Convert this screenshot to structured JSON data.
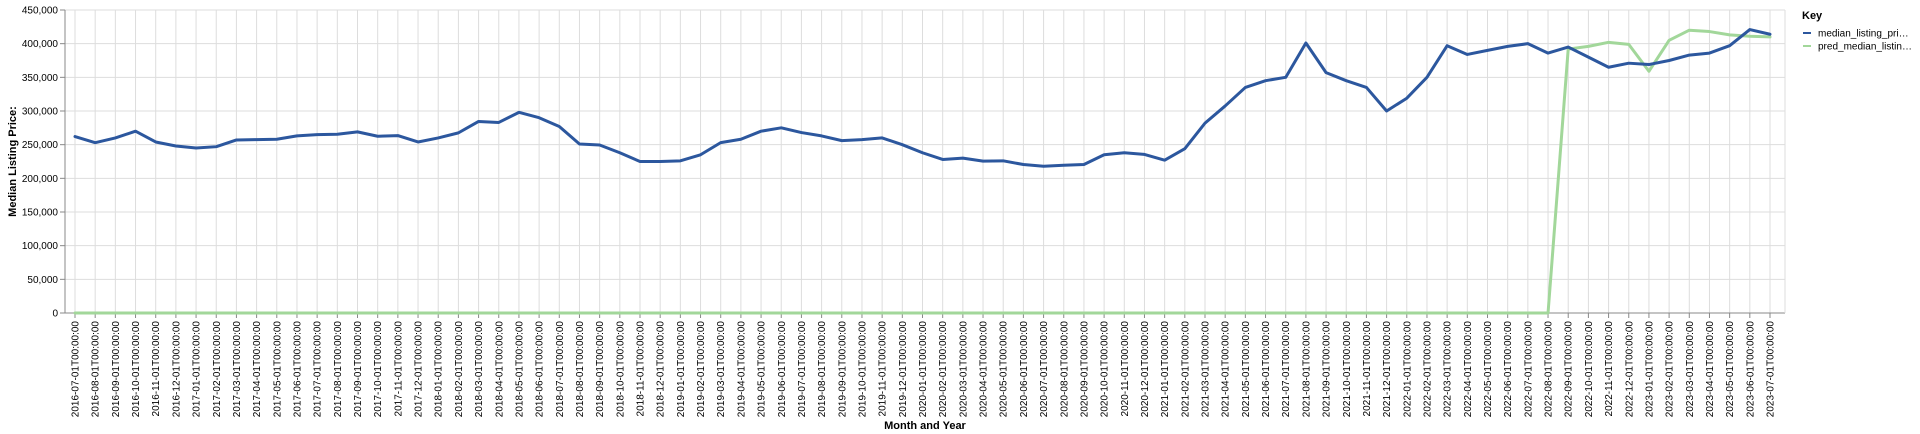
{
  "chart_data": {
    "type": "line",
    "xlabel": "Month and Year",
    "ylabel": "Median Listing Price:",
    "ylim": [
      0,
      450000
    ],
    "yticks": [
      "0",
      "50,000",
      "100,000",
      "150,000",
      "200,000",
      "250,000",
      "300,000",
      "350,000",
      "400,000",
      "450,000"
    ],
    "ytick_values": [
      0,
      50000,
      100000,
      150000,
      200000,
      250000,
      300000,
      350000,
      400000,
      450000
    ],
    "grid": true,
    "legend_title": "Key",
    "legend_position": "right",
    "x": [
      "2016-07-01T00:00:00",
      "2016-08-01T00:00:00",
      "2016-09-01T00:00:00",
      "2016-10-01T00:00:00",
      "2016-11-01T00:00:00",
      "2016-12-01T00:00:00",
      "2017-01-01T00:00:00",
      "2017-02-01T00:00:00",
      "2017-03-01T00:00:00",
      "2017-04-01T00:00:00",
      "2017-05-01T00:00:00",
      "2017-06-01T00:00:00",
      "2017-07-01T00:00:00",
      "2017-08-01T00:00:00",
      "2017-09-01T00:00:00",
      "2017-10-01T00:00:00",
      "2017-11-01T00:00:00",
      "2017-12-01T00:00:00",
      "2018-01-01T00:00:00",
      "2018-02-01T00:00:00",
      "2018-03-01T00:00:00",
      "2018-04-01T00:00:00",
      "2018-05-01T00:00:00",
      "2018-06-01T00:00:00",
      "2018-07-01T00:00:00",
      "2018-08-01T00:00:00",
      "2018-09-01T00:00:00",
      "2018-10-01T00:00:00",
      "2018-11-01T00:00:00",
      "2018-12-01T00:00:00",
      "2019-01-01T00:00:00",
      "2019-02-01T00:00:00",
      "2019-03-01T00:00:00",
      "2019-04-01T00:00:00",
      "2019-05-01T00:00:00",
      "2019-06-01T00:00:00",
      "2019-07-01T00:00:00",
      "2019-08-01T00:00:00",
      "2019-09-01T00:00:00",
      "2019-10-01T00:00:00",
      "2019-11-01T00:00:00",
      "2019-12-01T00:00:00",
      "2020-01-01T00:00:00",
      "2020-02-01T00:00:00",
      "2020-03-01T00:00:00",
      "2020-04-01T00:00:00",
      "2020-05-01T00:00:00",
      "2020-06-01T00:00:00",
      "2020-07-01T00:00:00",
      "2020-08-01T00:00:00",
      "2020-09-01T00:00:00",
      "2020-10-01T00:00:00",
      "2020-11-01T00:00:00",
      "2020-12-01T00:00:00",
      "2021-01-01T00:00:00",
      "2021-02-01T00:00:00",
      "2021-03-01T00:00:00",
      "2021-04-01T00:00:00",
      "2021-05-01T00:00:00",
      "2021-06-01T00:00:00",
      "2021-07-01T00:00:00",
      "2021-08-01T00:00:00",
      "2021-09-01T00:00:00",
      "2021-10-01T00:00:00",
      "2021-11-01T00:00:00",
      "2021-12-01T00:00:00",
      "2022-01-01T00:00:00",
      "2022-02-01T00:00:00",
      "2022-03-01T00:00:00",
      "2022-04-01T00:00:00",
      "2022-05-01T00:00:00",
      "2022-06-01T00:00:00",
      "2022-07-01T00:00:00",
      "2022-08-01T00:00:00",
      "2022-09-01T00:00:00",
      "2022-10-01T00:00:00",
      "2022-11-01T00:00:00",
      "2022-12-01T00:00:00",
      "2023-01-01T00:00:00",
      "2023-02-01T00:00:00",
      "2023-03-01T00:00:00",
      "2023-04-01T00:00:00",
      "2023-05-01T00:00:00",
      "2023-06-01T00:00:00",
      "2023-07-01T00:00:00"
    ],
    "series": [
      {
        "name": "median_listing_pri…",
        "color": "#2c579e",
        "values": [
          262000,
          253000,
          260000,
          270000,
          254000,
          248000,
          245000,
          247000,
          257000,
          257500,
          258000,
          263000,
          265000,
          265500,
          269000,
          262500,
          263500,
          254000,
          260000,
          267500,
          284500,
          283000,
          298000,
          290000,
          277000,
          251000,
          249500,
          238000,
          225000,
          225000,
          226000,
          235000,
          253000,
          258000,
          270000,
          275000,
          268000,
          263000,
          256000,
          257500,
          260000,
          250000,
          238000,
          228000,
          230000,
          225500,
          226000,
          220500,
          218000,
          219500,
          220500,
          235000,
          238000,
          235500,
          227000,
          244000,
          282000,
          307500,
          335000,
          345000,
          350000,
          401000,
          357000,
          345000,
          335000,
          300000,
          319000,
          350000,
          397000,
          384000,
          390000,
          396000,
          400000,
          386000,
          395000,
          380000,
          365000,
          371000,
          369000,
          375000,
          383000,
          386000,
          397000,
          421000,
          414000
        ]
      },
      {
        "name": "pred_median_listin…",
        "color": "#a2d79a",
        "values": [
          0,
          0,
          0,
          0,
          0,
          0,
          0,
          0,
          0,
          0,
          0,
          0,
          0,
          0,
          0,
          0,
          0,
          0,
          0,
          0,
          0,
          0,
          0,
          0,
          0,
          0,
          0,
          0,
          0,
          0,
          0,
          0,
          0,
          0,
          0,
          0,
          0,
          0,
          0,
          0,
          0,
          0,
          0,
          0,
          0,
          0,
          0,
          0,
          0,
          0,
          0,
          0,
          0,
          0,
          0,
          0,
          0,
          0,
          0,
          0,
          0,
          0,
          0,
          0,
          0,
          0,
          0,
          0,
          0,
          0,
          0,
          0,
          0,
          0,
          392000,
          396000,
          402000,
          399000,
          359000,
          405000,
          420000,
          418000,
          413000,
          411000,
          410000
        ]
      }
    ]
  }
}
